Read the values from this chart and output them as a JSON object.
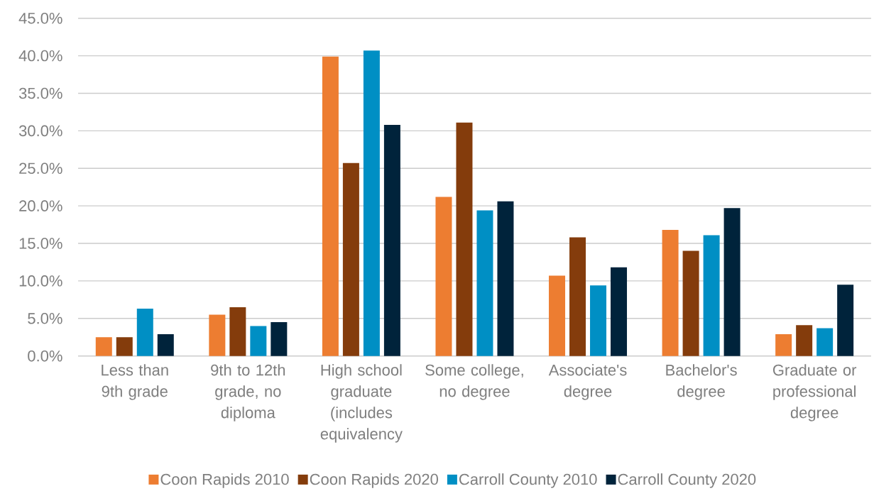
{
  "chart_data": {
    "type": "bar",
    "categories": [
      "Less than 9th grade",
      "9th to 12th grade, no diploma",
      "High school graduate (includes equivalency",
      "Some college, no degree",
      "Associate's degree",
      "Bachelor's degree",
      "Graduate or professional degree"
    ],
    "series": [
      {
        "name": "Coon Rapids 2010",
        "color": "#ED7D31",
        "values": [
          2.5,
          5.5,
          39.9,
          21.2,
          10.7,
          16.8,
          2.9
        ]
      },
      {
        "name": "Coon Rapids 2020",
        "color": "#843C0C",
        "values": [
          2.5,
          6.5,
          25.7,
          31.1,
          15.8,
          14.0,
          4.1
        ]
      },
      {
        "name": "Carroll County 2010",
        "color": "#008FC4",
        "values": [
          6.3,
          4.0,
          40.7,
          19.4,
          9.4,
          16.1,
          3.7
        ]
      },
      {
        "name": "Carroll County 2020",
        "color": "#00233B",
        "values": [
          2.9,
          4.5,
          30.8,
          20.6,
          11.8,
          19.7,
          9.5
        ]
      }
    ],
    "ylim": [
      0,
      45
    ],
    "yticks": [
      {
        "value": 0,
        "label": "0.0%"
      },
      {
        "value": 5,
        "label": "5.0%"
      },
      {
        "value": 10,
        "label": "10.0%"
      },
      {
        "value": 15,
        "label": "15.0%"
      },
      {
        "value": 20,
        "label": "20.0%"
      },
      {
        "value": 25,
        "label": "25.0%"
      },
      {
        "value": 30,
        "label": "30.0%"
      },
      {
        "value": 35,
        "label": "35.0%"
      },
      {
        "value": 40,
        "label": "40.0%"
      },
      {
        "value": 45,
        "label": "45.0%"
      }
    ],
    "grid": "y",
    "legend": "bottom"
  }
}
